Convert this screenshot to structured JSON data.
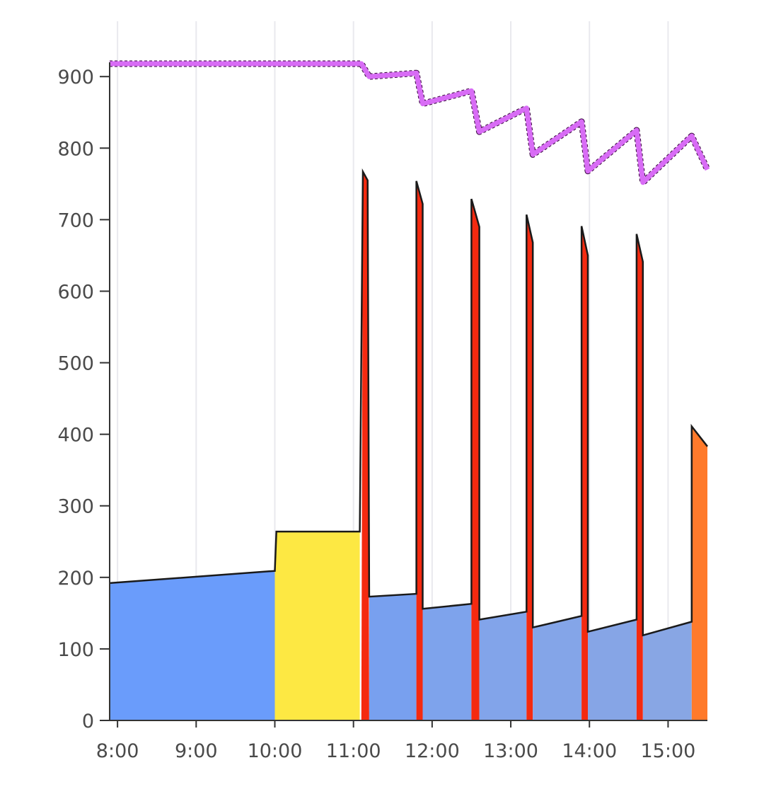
{
  "chart_data": {
    "type": "area",
    "title": "",
    "xlabel": "",
    "ylabel": "",
    "xlim": [
      7.9,
      15.5
    ],
    "ylim": [
      0,
      920
    ],
    "grid": {
      "vertical": true,
      "horizontal": false
    },
    "x_ticks": [
      {
        "value": 8,
        "label": "8:00"
      },
      {
        "value": 9,
        "label": "9:00"
      },
      {
        "value": 10,
        "label": "10:00"
      },
      {
        "value": 11,
        "label": "11:00"
      },
      {
        "value": 12,
        "label": "12:00"
      },
      {
        "value": 13,
        "label": "13:00"
      },
      {
        "value": 14,
        "label": "14:00"
      },
      {
        "value": 15,
        "label": "15:00"
      }
    ],
    "y_ticks": [
      {
        "value": 0,
        "label": "0"
      },
      {
        "value": 100,
        "label": "100"
      },
      {
        "value": 200,
        "label": "200"
      },
      {
        "value": 300,
        "label": "300"
      },
      {
        "value": 400,
        "label": "400"
      },
      {
        "value": 500,
        "label": "500"
      },
      {
        "value": 600,
        "label": "600"
      },
      {
        "value": 700,
        "label": "700"
      },
      {
        "value": 800,
        "label": "800"
      },
      {
        "value": 900,
        "label": "900"
      }
    ],
    "colors": {
      "blue": "#6a9cfb",
      "blue_muted": "#86a5e6",
      "yellow": "#fde843",
      "red": "#f42a10",
      "orange": "#ff7a2b",
      "purple_line": "#d86cf5",
      "outline": "#1a1a1a"
    },
    "segments": [
      {
        "color": "#6a9cfb",
        "points": [
          [
            7.9,
            0
          ],
          [
            7.9,
            192
          ],
          [
            10.0,
            209
          ],
          [
            10.0,
            0
          ]
        ]
      },
      {
        "color": "#fde843",
        "points": [
          [
            10.0,
            0
          ],
          [
            10.0,
            209
          ],
          [
            10.02,
            264
          ],
          [
            11.08,
            264
          ],
          [
            11.08,
            0
          ]
        ]
      },
      {
        "color": "#f42a10",
        "points": [
          [
            11.1,
            0
          ],
          [
            11.12,
            767
          ],
          [
            11.18,
            755
          ],
          [
            11.2,
            0
          ]
        ]
      },
      {
        "color": "#78a0ef",
        "points": [
          [
            11.2,
            0
          ],
          [
            11.2,
            173
          ],
          [
            11.8,
            177
          ],
          [
            11.8,
            0
          ]
        ]
      },
      {
        "color": "#f42a10",
        "points": [
          [
            11.8,
            0
          ],
          [
            11.8,
            754
          ],
          [
            11.88,
            722
          ],
          [
            11.88,
            0
          ]
        ]
      },
      {
        "color": "#7ea3ec",
        "points": [
          [
            11.88,
            0
          ],
          [
            11.88,
            156
          ],
          [
            12.5,
            163
          ],
          [
            12.5,
            0
          ]
        ]
      },
      {
        "color": "#f42a10",
        "points": [
          [
            12.5,
            0
          ],
          [
            12.5,
            729
          ],
          [
            12.6,
            690
          ],
          [
            12.6,
            0
          ]
        ]
      },
      {
        "color": "#82a4ea",
        "points": [
          [
            12.6,
            0
          ],
          [
            12.6,
            141
          ],
          [
            13.2,
            152
          ],
          [
            13.2,
            0
          ]
        ]
      },
      {
        "color": "#f42a10",
        "points": [
          [
            13.2,
            0
          ],
          [
            13.2,
            707
          ],
          [
            13.28,
            668
          ],
          [
            13.28,
            0
          ]
        ]
      },
      {
        "color": "#84a5e8",
        "points": [
          [
            13.28,
            0
          ],
          [
            13.28,
            130
          ],
          [
            13.9,
            146
          ],
          [
            13.9,
            0
          ]
        ]
      },
      {
        "color": "#f42a10",
        "points": [
          [
            13.9,
            0
          ],
          [
            13.9,
            691
          ],
          [
            13.98,
            650
          ],
          [
            13.98,
            0
          ]
        ]
      },
      {
        "color": "#86a5e6",
        "points": [
          [
            13.98,
            0
          ],
          [
            13.98,
            124
          ],
          [
            14.6,
            141
          ],
          [
            14.6,
            0
          ]
        ]
      },
      {
        "color": "#f42a10",
        "points": [
          [
            14.6,
            0
          ],
          [
            14.6,
            680
          ],
          [
            14.68,
            641
          ],
          [
            14.68,
            0
          ]
        ]
      },
      {
        "color": "#88a6e4",
        "points": [
          [
            14.68,
            0
          ],
          [
            14.68,
            119
          ],
          [
            15.3,
            138
          ],
          [
            15.3,
            0
          ]
        ]
      },
      {
        "color": "#ff7a2b",
        "points": [
          [
            15.3,
            0
          ],
          [
            15.3,
            411
          ],
          [
            15.5,
            383
          ],
          [
            15.5,
            0
          ]
        ]
      }
    ],
    "outline": [
      [
        7.9,
        192
      ],
      [
        10.0,
        209
      ],
      [
        10.0,
        209
      ],
      [
        10.02,
        264
      ],
      [
        11.08,
        264
      ],
      [
        11.12,
        767
      ],
      [
        11.18,
        755
      ],
      [
        11.2,
        173
      ],
      [
        11.8,
        177
      ],
      [
        11.8,
        754
      ],
      [
        11.88,
        722
      ],
      [
        11.88,
        156
      ],
      [
        12.5,
        163
      ],
      [
        12.5,
        729
      ],
      [
        12.6,
        690
      ],
      [
        12.6,
        141
      ],
      [
        13.2,
        152
      ],
      [
        13.2,
        707
      ],
      [
        13.28,
        668
      ],
      [
        13.28,
        130
      ],
      [
        13.9,
        146
      ],
      [
        13.9,
        691
      ],
      [
        13.98,
        650
      ],
      [
        13.98,
        124
      ],
      [
        14.6,
        141
      ],
      [
        14.6,
        680
      ],
      [
        14.68,
        641
      ],
      [
        14.68,
        119
      ],
      [
        15.3,
        138
      ],
      [
        15.3,
        411
      ],
      [
        15.5,
        383
      ]
    ],
    "top_line": {
      "color": "#d86cf5",
      "points": [
        [
          7.9,
          918
        ],
        [
          11.1,
          918
        ],
        [
          11.2,
          900
        ],
        [
          11.8,
          905
        ],
        [
          11.88,
          862
        ],
        [
          12.5,
          880
        ],
        [
          12.6,
          823
        ],
        [
          13.2,
          856
        ],
        [
          13.28,
          791
        ],
        [
          13.9,
          837
        ],
        [
          13.98,
          768
        ],
        [
          14.6,
          825
        ],
        [
          14.68,
          752
        ],
        [
          15.3,
          817
        ],
        [
          15.5,
          770
        ]
      ]
    }
  }
}
